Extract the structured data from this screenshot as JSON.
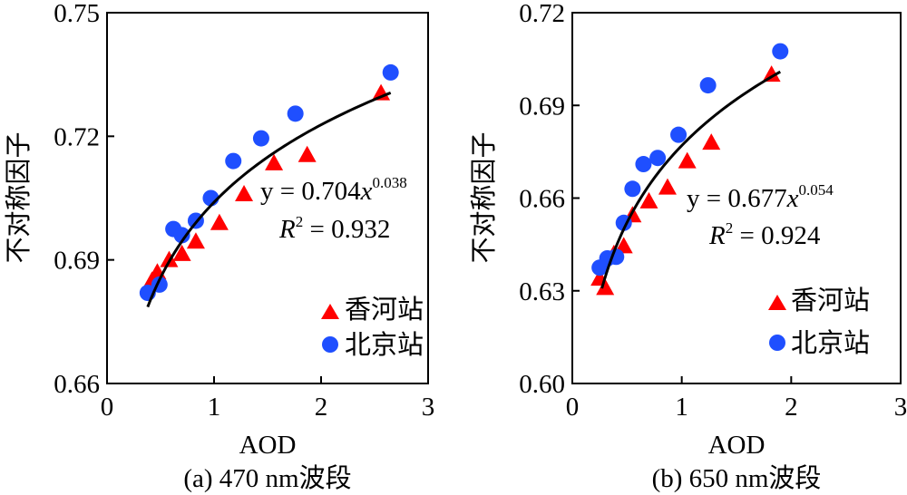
{
  "chart_data": [
    {
      "type": "scatter",
      "caption": "(a) 470 nm波段",
      "xlabel": "AOD",
      "ylabel": "不对称因子",
      "xlim": [
        0,
        3
      ],
      "ylim": [
        0.66,
        0.75
      ],
      "xticks": [
        "0",
        "1",
        "2",
        "3"
      ],
      "yticks": [
        "0.66",
        "0.69",
        "0.72",
        "0.75"
      ],
      "grid": false,
      "legend_position": "bottom-right",
      "equation": {
        "prefix": "y = 0.704",
        "var": "x",
        "exp": "0.038"
      },
      "r2": {
        "base": "R",
        "sup": "2",
        "value": " = 0.932"
      },
      "fit": {
        "a": 0.704,
        "b": 0.038,
        "x_range": [
          0.38,
          2.65
        ]
      },
      "series": [
        {
          "name": "香河站",
          "marker": "triangle",
          "color": "#ff0000",
          "points": [
            [
              0.42,
              0.685
            ],
            [
              0.47,
              0.687
            ],
            [
              0.58,
              0.69
            ],
            [
              0.7,
              0.6915
            ],
            [
              0.83,
              0.6945
            ],
            [
              1.05,
              0.699
            ],
            [
              1.28,
              0.706
            ],
            [
              1.56,
              0.7135
            ],
            [
              1.87,
              0.7155
            ],
            [
              2.56,
              0.7305
            ]
          ]
        },
        {
          "name": "北京站",
          "marker": "circle",
          "color": "#1f4fff",
          "points": [
            [
              0.38,
              0.682
            ],
            [
              0.49,
              0.684
            ],
            [
              0.62,
              0.6975
            ],
            [
              0.7,
              0.696
            ],
            [
              0.83,
              0.6995
            ],
            [
              0.97,
              0.705
            ],
            [
              1.18,
              0.714
            ],
            [
              1.44,
              0.7195
            ],
            [
              1.76,
              0.7255
            ],
            [
              2.65,
              0.7355
            ]
          ]
        }
      ]
    },
    {
      "type": "scatter",
      "caption": "(b) 650 nm波段",
      "xlabel": "AOD",
      "ylabel": "不对称因子",
      "xlim": [
        0,
        3
      ],
      "ylim": [
        0.6,
        0.72
      ],
      "xticks": [
        "0",
        "1",
        "2",
        "3"
      ],
      "yticks": [
        "0.60",
        "0.63",
        "0.66",
        "0.69",
        "0.72"
      ],
      "grid": false,
      "legend_position": "bottom-right",
      "equation": {
        "prefix": "y = 0.677",
        "var": "x",
        "exp": "0.054"
      },
      "r2": {
        "base": "R",
        "sup": "2",
        "value": " = 0.924"
      },
      "fit": {
        "a": 0.677,
        "b": 0.054,
        "x_range": [
          0.27,
          1.9
        ]
      },
      "series": [
        {
          "name": "香河站",
          "marker": "triangle",
          "color": "#ff0000",
          "points": [
            [
              0.25,
              0.634
            ],
            [
              0.3,
              0.631
            ],
            [
              0.38,
              0.642
            ],
            [
              0.47,
              0.6445
            ],
            [
              0.55,
              0.6545
            ],
            [
              0.7,
              0.659
            ],
            [
              0.87,
              0.6635
            ],
            [
              1.05,
              0.672
            ],
            [
              1.27,
              0.678
            ],
            [
              1.82,
              0.7
            ]
          ]
        },
        {
          "name": "北京站",
          "marker": "circle",
          "color": "#1f4fff",
          "points": [
            [
              0.25,
              0.6375
            ],
            [
              0.32,
              0.6405
            ],
            [
              0.4,
              0.641
            ],
            [
              0.47,
              0.652
            ],
            [
              0.55,
              0.663
            ],
            [
              0.65,
              0.671
            ],
            [
              0.78,
              0.673
            ],
            [
              0.97,
              0.6805
            ],
            [
              1.24,
              0.6965
            ],
            [
              1.9,
              0.7075
            ]
          ]
        }
      ]
    }
  ]
}
